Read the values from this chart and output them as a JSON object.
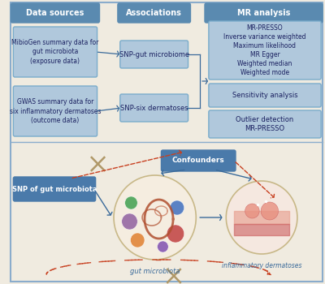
{
  "bg_color": "#f0ebe0",
  "border_color": "#8aaccc",
  "header_color": "#5a8ab0",
  "header_text_color": "#ffffff",
  "box_color": "#b0c8dc",
  "box_text_color": "#1a2060",
  "box_edge_color": "#7aaccb",
  "arrow_color": "#3a6a9a",
  "dashed_color": "#c84020",
  "cross_color": "#b09868",
  "snp_box_color": "#4a7aaa",
  "snp_text_color": "#ffffff",
  "conf_box_color": "#4a7aaa",
  "conf_text_color": "#ffffff",
  "title_left": "Data sources",
  "title_mid": "Associations",
  "title_right": "MR analysis",
  "box1_text": "MibioGen summary data for\ngut microbiota\n(exposure data)",
  "box2_text": "GWAS summary data for\nsix inflammatory dermatoses\n(outcome data)",
  "box3_text": "SNP-gut microbiome",
  "box4_text": "SNP-six dermatoses",
  "box5_text": "MR-PRESSO\nInverse variance weighted\nMaximum likelihood\nMR Egger\nWeighted median\nWeighted mode",
  "box6_text": "Sensitivity analysis",
  "box7_text": "Outlier detection\nMR-PRESSO",
  "snp_label": "SNP of gut microbiota",
  "gut_label": "gut microbiota",
  "derm_label": "inflammatory dermatoses",
  "conf_label": "Confounders"
}
